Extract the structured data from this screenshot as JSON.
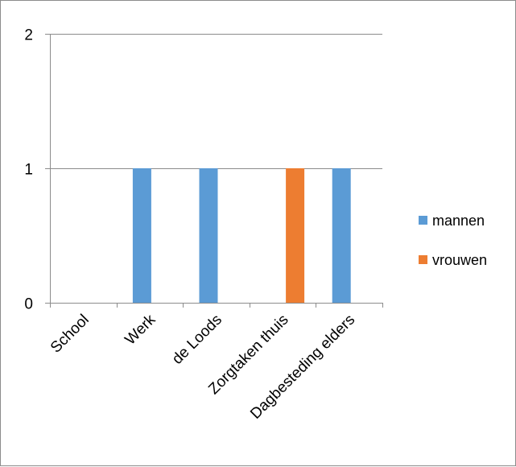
{
  "chart_data": {
    "type": "bar",
    "categories": [
      "School",
      "Werk",
      "de Loods",
      "Zorgtaken thuis",
      "Dagbesteding elders"
    ],
    "series": [
      {
        "name": "mannen",
        "color": "#5b9bd5",
        "values": [
          0,
          1,
          1,
          0,
          1
        ]
      },
      {
        "name": "vrouwen",
        "color": "#ed7d31",
        "values": [
          0,
          0,
          0,
          1,
          0
        ]
      }
    ],
    "ylim": [
      0,
      2
    ],
    "yticks": [
      "0",
      "1",
      "2"
    ],
    "grid": true,
    "legend_position": "right"
  }
}
